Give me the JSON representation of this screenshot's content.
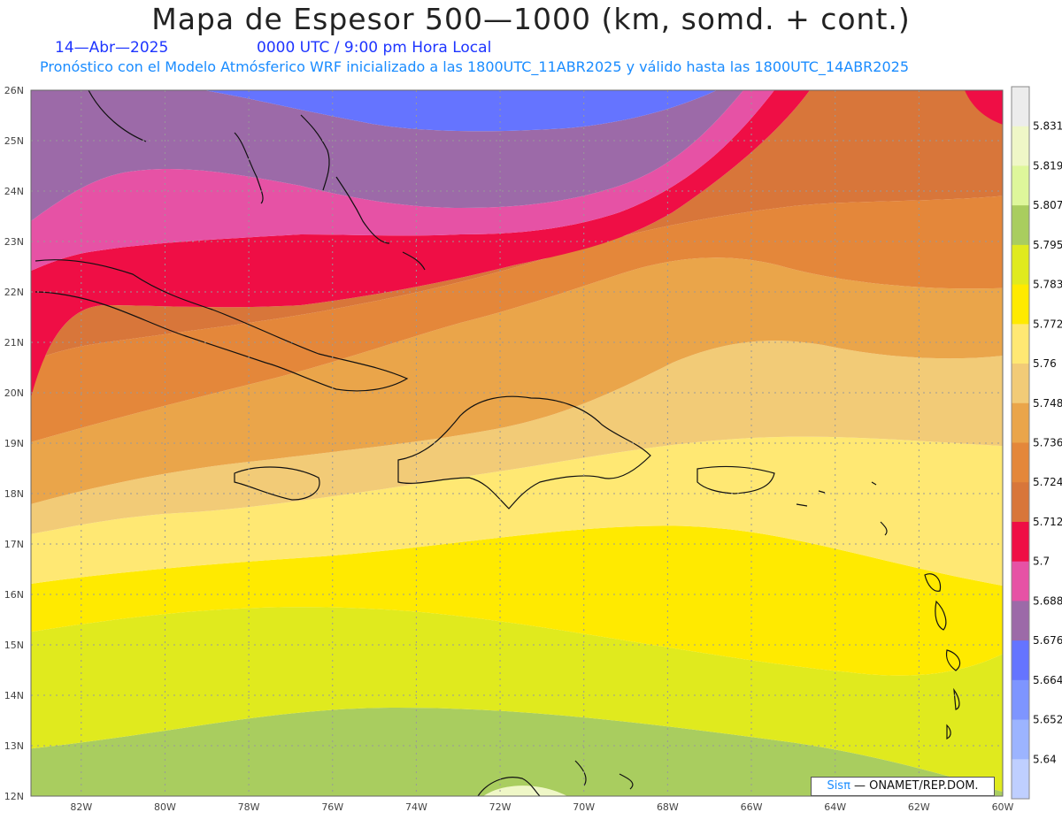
{
  "title": "Mapa de Espesor 500—1000 (km, somd. + cont.)",
  "date_label": "14—Abr—2025",
  "time_label": "0000 UTC / 9:00 pm Hora Local",
  "subtitle": "Pronóstico con el Modelo Atmósferico WRF inicializado a las 1800UTC_11ABR2025 y válido hasta las  1800UTC_14ABR2025",
  "map": {
    "lat_labels": [
      "26N",
      "25N",
      "24N",
      "23N",
      "22N",
      "21N",
      "20N",
      "19N",
      "18N",
      "17N",
      "16N",
      "15N",
      "14N",
      "13N",
      "12N"
    ],
    "lon_labels": [
      "82W",
      "80W",
      "78W",
      "76W",
      "74W",
      "72W",
      "70W",
      "68W",
      "66W",
      "64W",
      "62W",
      "60W"
    ],
    "lat_range": [
      12,
      26
    ],
    "lon_range": [
      -83.2,
      -60
    ]
  },
  "colorbar": {
    "labels": [
      "5.831",
      "5.819",
      "5.807",
      "5.795",
      "5.783",
      "5.772",
      "5.76",
      "5.748",
      "5.736",
      "5.724",
      "5.712",
      "5.7",
      "5.688",
      "5.676",
      "5.664",
      "5.652",
      "5.64"
    ],
    "colors": [
      "#ececec",
      "#eff7c7",
      "#def79b",
      "#a9cd5f",
      "#e0ea1e",
      "#ffea00",
      "#ffe873",
      "#f2cb77",
      "#eaa54a",
      "#e4873a",
      "#d8763a",
      "#ef0e45",
      "#e652a5",
      "#9c6aa8",
      "#6574ff",
      "#7e95ff",
      "#9cb4ff",
      "#bfcfff"
    ]
  },
  "credit": {
    "brand": "Sisπ",
    "text": " — ONAMET/REP.DOM."
  }
}
